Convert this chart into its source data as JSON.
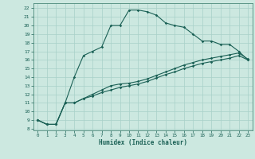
{
  "title": "",
  "xlabel": "Humidex (Indice chaleur)",
  "bg_color": "#cce8e0",
  "line_color": "#1a6055",
  "grid_color": "#a8d0c8",
  "spine_color": "#4a8878",
  "xlim": [
    -0.5,
    23.5
  ],
  "ylim": [
    7.8,
    22.6
  ],
  "xticks": [
    0,
    1,
    2,
    3,
    4,
    5,
    6,
    7,
    8,
    9,
    10,
    11,
    12,
    13,
    14,
    15,
    16,
    17,
    18,
    19,
    20,
    21,
    22,
    23
  ],
  "yticks": [
    8,
    9,
    10,
    11,
    12,
    13,
    14,
    15,
    16,
    17,
    18,
    19,
    20,
    21,
    22
  ],
  "line1_x": [
    0,
    1,
    2,
    3,
    4,
    5,
    6,
    7,
    8,
    9,
    10,
    11,
    12,
    13,
    14,
    15,
    16,
    17,
    18,
    19,
    20,
    21,
    22,
    23
  ],
  "line1_y": [
    9.0,
    8.5,
    8.5,
    11.0,
    14.0,
    16.5,
    17.0,
    17.5,
    20.0,
    20.0,
    21.8,
    21.8,
    21.6,
    21.2,
    20.3,
    20.0,
    19.8,
    19.0,
    18.2,
    18.2,
    17.8,
    17.8,
    17.0,
    16.0
  ],
  "line2_x": [
    0,
    1,
    2,
    3,
    4,
    5,
    6,
    7,
    8,
    9,
    10,
    11,
    12,
    13,
    14,
    15,
    16,
    17,
    18,
    19,
    20,
    21,
    22,
    23
  ],
  "line2_y": [
    9.0,
    8.5,
    8.5,
    11.0,
    11.0,
    11.5,
    12.0,
    12.5,
    13.0,
    13.2,
    13.3,
    13.5,
    13.8,
    14.2,
    14.6,
    15.0,
    15.4,
    15.7,
    16.0,
    16.2,
    16.4,
    16.6,
    16.8,
    16.1
  ],
  "line3_x": [
    0,
    1,
    2,
    3,
    4,
    5,
    6,
    7,
    8,
    9,
    10,
    11,
    12,
    13,
    14,
    15,
    16,
    17,
    18,
    19,
    20,
    21,
    22,
    23
  ],
  "line3_y": [
    9.0,
    8.5,
    8.5,
    11.0,
    11.0,
    11.5,
    11.8,
    12.2,
    12.5,
    12.8,
    13.0,
    13.2,
    13.5,
    13.9,
    14.3,
    14.6,
    15.0,
    15.3,
    15.6,
    15.8,
    16.0,
    16.2,
    16.5,
    16.0
  ]
}
